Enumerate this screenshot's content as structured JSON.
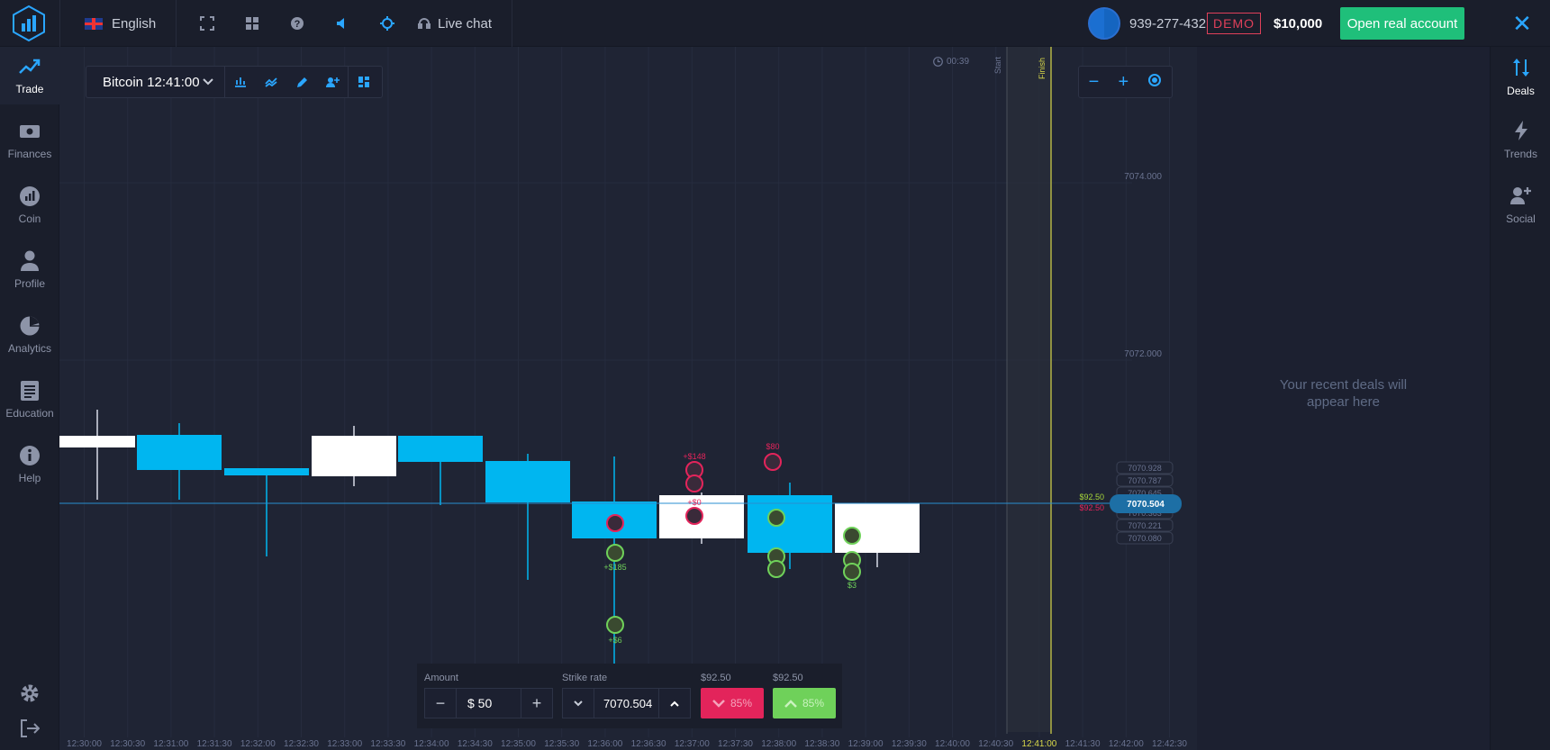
{
  "topbar": {
    "language": "English",
    "live_chat": "Live chat",
    "account_id": "939-277-432",
    "account_mode": "DEMO",
    "balance": "$10,000",
    "open_real_label": "Open real account"
  },
  "leftnav": [
    {
      "label": "Trade",
      "icon": "trend-up-icon"
    },
    {
      "label": "Finances",
      "icon": "cash-icon"
    },
    {
      "label": "Coin",
      "icon": "coin-icon"
    },
    {
      "label": "Profile",
      "icon": "person-icon"
    },
    {
      "label": "Analytics",
      "icon": "pie-chart-icon"
    },
    {
      "label": "Education",
      "icon": "document-icon"
    },
    {
      "label": "Help",
      "icon": "info-icon"
    }
  ],
  "rightnav": [
    {
      "label": "Deals",
      "icon": "swap-arrows-icon"
    },
    {
      "label": "Trends",
      "icon": "lightning-icon"
    },
    {
      "label": "Social",
      "icon": "add-person-icon"
    }
  ],
  "deals_panel": {
    "empty_text_1": "Your recent deals will",
    "empty_text_2": "appear here"
  },
  "chart": {
    "asset": "Bitcoin 12:41:00",
    "timer": "00:39",
    "start_label": "Start",
    "finish_label": "Finish",
    "price_levels": [
      "7074.000",
      "7072.000"
    ],
    "current_price": "7070.504",
    "side_prices": [
      "7070.928",
      "7070.787",
      "7070.645",
      "7070.363",
      "7070.221",
      "7070.080"
    ],
    "payout_up_label": "$92.50",
    "payout_down_label": "$92.50",
    "time_labels": [
      "12:30:00",
      "12:30:30",
      "12:31:00",
      "12:31:30",
      "12:32:00",
      "12:32:30",
      "12:33:00",
      "12:33:30",
      "12:34:00",
      "12:34:30",
      "12:35:00",
      "12:35:30",
      "12:36:00",
      "12:36:30",
      "12:37:00",
      "12:37:30",
      "12:38:00",
      "12:38:30",
      "12:39:00",
      "12:39:30",
      "12:40:00",
      "12:40:30",
      "12:41:00",
      "12:41:30",
      "12:42:00",
      "12:42:30"
    ],
    "trade_labels_green": [
      "+$185",
      "+$6",
      "$3"
    ],
    "trade_labels_pink": [
      "+$148",
      "$80",
      "+$0"
    ]
  },
  "trade_panel": {
    "amount_label": "Amount",
    "amount_value": "$ 50",
    "strike_label": "Strike rate",
    "strike_value": "7070.504",
    "put_payout": "$92.50",
    "call_payout": "$92.50",
    "put_percent": "85%",
    "call_percent": "85%"
  }
}
